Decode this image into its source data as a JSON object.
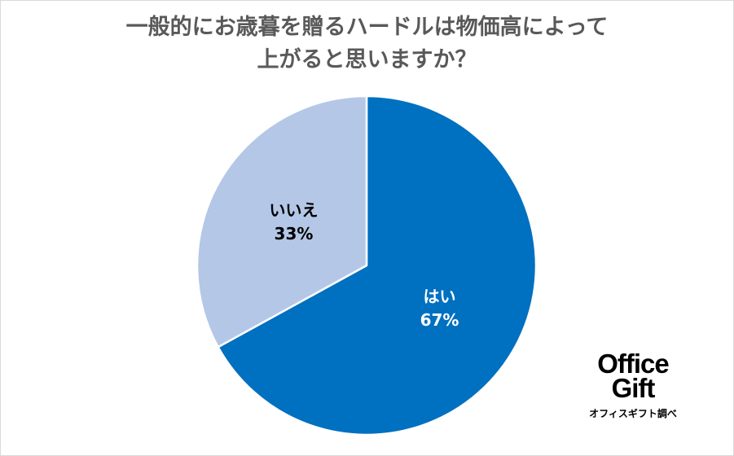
{
  "chart_data": {
    "type": "pie",
    "title_lines": [
      "一般的にお歳暮を贈るハードルは物価高によって",
      "上がると思いますか？"
    ],
    "slices": [
      {
        "label": "はい",
        "percent_label": "67%",
        "value": 67,
        "color": "#0070c0",
        "label_color": "#ffffff"
      },
      {
        "label": "いいえ",
        "percent_label": "33%",
        "value": 33,
        "color": "#b4c7e7",
        "label_color": "#000000"
      }
    ],
    "start": "12 o'clock, clockwise"
  },
  "logo": {
    "word1": "Office",
    "word2": "Gift",
    "caption": "オフィスギフト調べ"
  }
}
